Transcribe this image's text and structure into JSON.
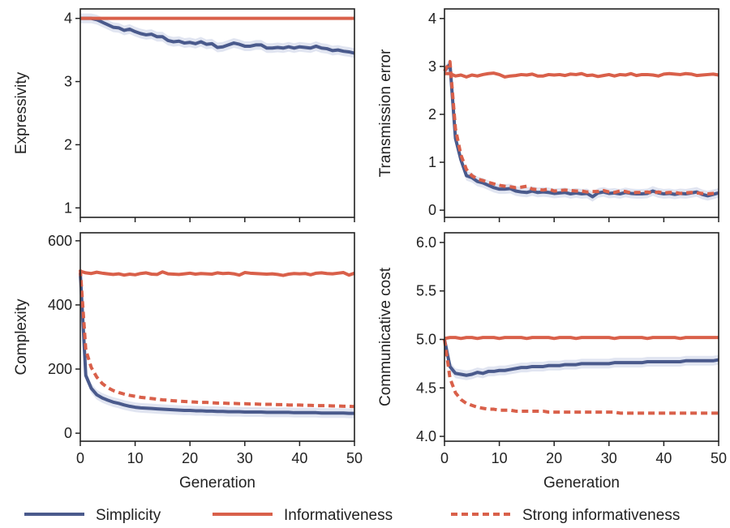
{
  "colors": {
    "simplicity": "#4a5a8c",
    "informativeness": "#d9604a",
    "strong": "#d9604a",
    "band": "#c9cfe6",
    "axis": "#222222"
  },
  "legend": {
    "position": "bottom",
    "items": [
      {
        "name": "Simplicity",
        "style": "solid",
        "color": "#4a5a8c"
      },
      {
        "name": "Informativeness",
        "style": "solid",
        "color": "#d9604a"
      },
      {
        "name": "Strong informativeness",
        "style": "dashed",
        "color": "#d9604a"
      }
    ]
  },
  "chart_data": [
    {
      "type": "line",
      "panel": "top-left",
      "xlabel": "",
      "ylabel": "Expressivity",
      "xlim": [
        0,
        50
      ],
      "ylim": [
        0.85,
        4.15
      ],
      "xticks": [
        0,
        10,
        20,
        30,
        40,
        50
      ],
      "yticks": [
        1,
        2,
        3,
        4
      ],
      "show_xtick_labels": false,
      "x": [
        0,
        1,
        2,
        3,
        4,
        5,
        6,
        7,
        8,
        9,
        10,
        11,
        12,
        13,
        14,
        15,
        16,
        17,
        18,
        19,
        20,
        21,
        22,
        23,
        24,
        25,
        26,
        27,
        28,
        29,
        30,
        31,
        32,
        33,
        34,
        35,
        36,
        37,
        38,
        39,
        40,
        41,
        42,
        43,
        44,
        45,
        46,
        47,
        48,
        49,
        50
      ],
      "series": [
        {
          "name": "Simplicity",
          "style": "solid",
          "band": true,
          "values": [
            4.0,
            4.0,
            4.0,
            3.98,
            3.94,
            3.9,
            3.86,
            3.85,
            3.81,
            3.83,
            3.79,
            3.76,
            3.74,
            3.75,
            3.71,
            3.71,
            3.65,
            3.63,
            3.64,
            3.61,
            3.62,
            3.6,
            3.63,
            3.59,
            3.6,
            3.54,
            3.55,
            3.58,
            3.61,
            3.59,
            3.56,
            3.56,
            3.58,
            3.58,
            3.53,
            3.53,
            3.54,
            3.53,
            3.55,
            3.53,
            3.55,
            3.54,
            3.53,
            3.56,
            3.53,
            3.52,
            3.49,
            3.5,
            3.48,
            3.47,
            3.45
          ]
        },
        {
          "name": "Informativeness",
          "style": "solid",
          "band": false,
          "values": [
            4.0,
            4.0,
            4.0,
            4.0,
            4.0,
            4.0,
            4.0,
            4.0,
            4.0,
            4.0,
            4.0,
            4.0,
            4.0,
            4.0,
            4.0,
            4.0,
            4.0,
            4.0,
            4.0,
            4.0,
            4.0,
            4.0,
            4.0,
            4.0,
            4.0,
            4.0,
            4.0,
            4.0,
            4.0,
            4.0,
            4.0,
            4.0,
            4.0,
            4.0,
            4.0,
            4.0,
            4.0,
            4.0,
            4.0,
            4.0,
            4.0,
            4.0,
            4.0,
            4.0,
            4.0,
            4.0,
            4.0,
            4.0,
            4.0,
            4.0,
            4.0
          ]
        }
      ]
    },
    {
      "type": "line",
      "panel": "top-right",
      "xlabel": "",
      "ylabel": "Transmission error",
      "xlim": [
        0,
        50
      ],
      "ylim": [
        -0.15,
        4.2
      ],
      "xticks": [
        0,
        10,
        20,
        30,
        40,
        50
      ],
      "yticks": [
        0,
        1,
        2,
        3,
        4
      ],
      "show_xtick_labels": false,
      "x": [
        0,
        1,
        2,
        3,
        4,
        5,
        6,
        7,
        8,
        9,
        10,
        11,
        12,
        13,
        14,
        15,
        16,
        17,
        18,
        19,
        20,
        21,
        22,
        23,
        24,
        25,
        26,
        27,
        28,
        29,
        30,
        31,
        32,
        33,
        34,
        35,
        36,
        37,
        38,
        39,
        40,
        41,
        42,
        43,
        44,
        45,
        46,
        47,
        48,
        49,
        50
      ],
      "series": [
        {
          "name": "Simplicity",
          "style": "solid",
          "band": true,
          "values": [
            2.9,
            3.05,
            1.5,
            1.05,
            0.72,
            0.68,
            0.6,
            0.57,
            0.52,
            0.47,
            0.44,
            0.44,
            0.45,
            0.4,
            0.38,
            0.37,
            0.4,
            0.37,
            0.38,
            0.37,
            0.35,
            0.36,
            0.37,
            0.34,
            0.36,
            0.34,
            0.35,
            0.28,
            0.36,
            0.38,
            0.35,
            0.36,
            0.34,
            0.37,
            0.35,
            0.34,
            0.34,
            0.35,
            0.4,
            0.36,
            0.34,
            0.35,
            0.33,
            0.35,
            0.34,
            0.36,
            0.38,
            0.33,
            0.3,
            0.33,
            0.36
          ]
        },
        {
          "name": "Informativeness",
          "style": "solid",
          "band": false,
          "values": [
            2.85,
            2.85,
            2.8,
            2.82,
            2.78,
            2.82,
            2.8,
            2.83,
            2.85,
            2.86,
            2.83,
            2.78,
            2.8,
            2.81,
            2.83,
            2.82,
            2.84,
            2.8,
            2.8,
            2.83,
            2.82,
            2.83,
            2.81,
            2.84,
            2.83,
            2.85,
            2.81,
            2.82,
            2.79,
            2.81,
            2.83,
            2.8,
            2.83,
            2.82,
            2.85,
            2.81,
            2.83,
            2.83,
            2.82,
            2.8,
            2.84,
            2.85,
            2.84,
            2.83,
            2.85,
            2.84,
            2.81,
            2.82,
            2.83,
            2.84,
            2.82
          ]
        },
        {
          "name": "Strong informativeness",
          "style": "dashed",
          "band": false,
          "values": [
            2.9,
            3.1,
            1.7,
            1.15,
            0.85,
            0.72,
            0.65,
            0.62,
            0.58,
            0.55,
            0.52,
            0.5,
            0.49,
            0.47,
            0.48,
            0.5,
            0.44,
            0.43,
            0.42,
            0.44,
            0.4,
            0.41,
            0.42,
            0.41,
            0.4,
            0.4,
            0.38,
            0.39,
            0.39,
            0.41,
            0.38,
            0.37,
            0.4,
            0.39,
            0.36,
            0.37,
            0.37,
            0.38,
            0.36,
            0.38,
            0.36,
            0.37,
            0.37,
            0.35,
            0.36,
            0.37,
            0.36,
            0.35,
            0.34,
            0.35,
            0.36
          ]
        }
      ]
    },
    {
      "type": "line",
      "panel": "bottom-left",
      "xlabel": "Generation",
      "ylabel": "Complexity",
      "xlim": [
        0,
        50
      ],
      "ylim": [
        -25,
        625
      ],
      "xticks": [
        0,
        10,
        20,
        30,
        40,
        50
      ],
      "yticks": [
        0,
        200,
        400,
        600
      ],
      "show_xtick_labels": true,
      "x": [
        0,
        1,
        2,
        3,
        4,
        5,
        6,
        7,
        8,
        9,
        10,
        11,
        12,
        13,
        14,
        15,
        16,
        17,
        18,
        19,
        20,
        21,
        22,
        23,
        24,
        25,
        26,
        27,
        28,
        29,
        30,
        31,
        32,
        33,
        34,
        35,
        36,
        37,
        38,
        39,
        40,
        41,
        42,
        43,
        44,
        45,
        46,
        47,
        48,
        49,
        50
      ],
      "series": [
        {
          "name": "Simplicity",
          "style": "solid",
          "band": true,
          "values": [
            500,
            180,
            140,
            120,
            110,
            103,
            97,
            93,
            88,
            84,
            81,
            79,
            78,
            77,
            76,
            75,
            74,
            73,
            72,
            71,
            71,
            70,
            70,
            69,
            69,
            68,
            68,
            67,
            67,
            67,
            66,
            66,
            66,
            66,
            65,
            65,
            65,
            65,
            65,
            64,
            64,
            64,
            64,
            64,
            63,
            63,
            63,
            63,
            63,
            62,
            62
          ]
        },
        {
          "name": "Informativeness",
          "style": "solid",
          "band": false,
          "values": [
            505,
            500,
            498,
            502,
            499,
            497,
            495,
            497,
            493,
            496,
            494,
            498,
            500,
            496,
            495,
            503,
            497,
            496,
            495,
            497,
            499,
            496,
            498,
            497,
            496,
            500,
            498,
            499,
            497,
            493,
            501,
            499,
            498,
            497,
            496,
            497,
            495,
            492,
            496,
            498,
            497,
            498,
            494,
            499,
            500,
            498,
            497,
            499,
            501,
            493,
            499
          ]
        },
        {
          "name": "Strong informativeness",
          "style": "dashed",
          "band": false,
          "values": [
            510,
            260,
            205,
            175,
            155,
            142,
            133,
            127,
            122,
            118,
            115,
            112,
            110,
            108,
            106,
            104,
            103,
            101,
            100,
            99,
            98,
            97,
            96,
            96,
            95,
            94,
            94,
            93,
            93,
            92,
            92,
            91,
            91,
            90,
            90,
            90,
            89,
            89,
            88,
            88,
            88,
            87,
            87,
            86,
            86,
            86,
            85,
            85,
            84,
            84,
            83
          ]
        }
      ]
    },
    {
      "type": "line",
      "panel": "bottom-right",
      "xlabel": "Generation",
      "ylabel": "Communicative cost",
      "xlim": [
        0,
        50
      ],
      "ylim": [
        3.95,
        6.1
      ],
      "xticks": [
        0,
        10,
        20,
        30,
        40,
        50
      ],
      "yticks": [
        4.0,
        4.5,
        5.0,
        5.5,
        6.0
      ],
      "ytick_labels": [
        "4.0",
        "4.5",
        "5.0",
        "5.5",
        "6.0"
      ],
      "show_xtick_labels": true,
      "x": [
        0,
        1,
        2,
        3,
        4,
        5,
        6,
        7,
        8,
        9,
        10,
        11,
        12,
        13,
        14,
        15,
        16,
        17,
        18,
        19,
        20,
        21,
        22,
        23,
        24,
        25,
        26,
        27,
        28,
        29,
        30,
        31,
        32,
        33,
        34,
        35,
        36,
        37,
        38,
        39,
        40,
        41,
        42,
        43,
        44,
        45,
        46,
        47,
        48,
        49,
        50
      ],
      "series": [
        {
          "name": "Simplicity",
          "style": "solid",
          "band": true,
          "values": [
            5.0,
            4.72,
            4.65,
            4.64,
            4.63,
            4.64,
            4.66,
            4.65,
            4.67,
            4.67,
            4.68,
            4.68,
            4.69,
            4.7,
            4.71,
            4.71,
            4.72,
            4.72,
            4.72,
            4.73,
            4.73,
            4.73,
            4.74,
            4.74,
            4.74,
            4.75,
            4.75,
            4.75,
            4.75,
            4.75,
            4.75,
            4.76,
            4.76,
            4.76,
            4.76,
            4.76,
            4.76,
            4.77,
            4.77,
            4.77,
            4.77,
            4.77,
            4.77,
            4.77,
            4.78,
            4.78,
            4.78,
            4.78,
            4.78,
            4.78,
            4.79
          ]
        },
        {
          "name": "Informativeness",
          "style": "solid",
          "band": false,
          "values": [
            5.01,
            5.02,
            5.02,
            5.01,
            5.02,
            5.02,
            5.01,
            5.02,
            5.02,
            5.02,
            5.01,
            5.02,
            5.02,
            5.02,
            5.02,
            5.01,
            5.02,
            5.02,
            5.02,
            5.02,
            5.01,
            5.02,
            5.02,
            5.02,
            5.01,
            5.02,
            5.02,
            5.02,
            5.02,
            5.02,
            5.02,
            5.01,
            5.02,
            5.02,
            5.02,
            5.02,
            5.02,
            5.01,
            5.02,
            5.02,
            5.02,
            5.02,
            5.02,
            5.01,
            5.02,
            5.02,
            5.02,
            5.02,
            5.02,
            5.02,
            5.02
          ]
        },
        {
          "name": "Strong informativeness",
          "style": "dashed",
          "band": false,
          "values": [
            5.0,
            4.6,
            4.45,
            4.38,
            4.34,
            4.32,
            4.3,
            4.29,
            4.28,
            4.28,
            4.27,
            4.27,
            4.27,
            4.26,
            4.26,
            4.26,
            4.26,
            4.26,
            4.26,
            4.25,
            4.25,
            4.25,
            4.25,
            4.25,
            4.25,
            4.25,
            4.25,
            4.25,
            4.25,
            4.25,
            4.25,
            4.25,
            4.24,
            4.24,
            4.24,
            4.24,
            4.24,
            4.24,
            4.24,
            4.24,
            4.24,
            4.24,
            4.24,
            4.24,
            4.24,
            4.24,
            4.24,
            4.24,
            4.24,
            4.24,
            4.24
          ]
        }
      ]
    }
  ]
}
